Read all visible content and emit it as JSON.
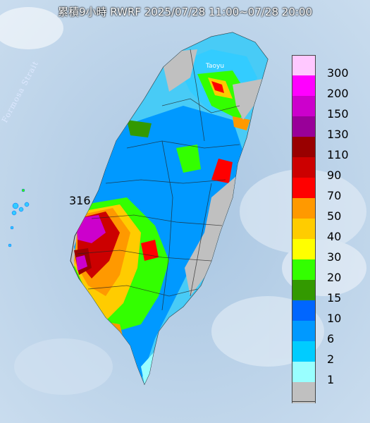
{
  "map": {
    "title": "累積9小時 RWRF 2025/07/28 11:00~07/28 20:00",
    "strait_label": "Formosa Strait",
    "city_label": "Taoyu",
    "max_value_label": "316"
  },
  "legend": {
    "items": [
      {
        "label": "300",
        "color": "#ffc8ff"
      },
      {
        "label": "200",
        "color": "#ff00ff"
      },
      {
        "label": "150",
        "color": "#cc00cc"
      },
      {
        "label": "130",
        "color": "#990099"
      },
      {
        "label": "110",
        "color": "#990000"
      },
      {
        "label": "90",
        "color": "#cc0000"
      },
      {
        "label": "70",
        "color": "#ff0000"
      },
      {
        "label": "50",
        "color": "#ff9900"
      },
      {
        "label": "40",
        "color": "#ffcc00"
      },
      {
        "label": "30",
        "color": "#ffff00"
      },
      {
        "label": "20",
        "color": "#33ff00"
      },
      {
        "label": "15",
        "color": "#339900"
      },
      {
        "label": "10",
        "color": "#0066ff"
      },
      {
        "label": "6",
        "color": "#0099ff"
      },
      {
        "label": "2",
        "color": "#00ccff"
      },
      {
        "label": "1",
        "color": "#99ffff"
      },
      {
        "label": "",
        "color": "#c0c0c0"
      }
    ]
  }
}
